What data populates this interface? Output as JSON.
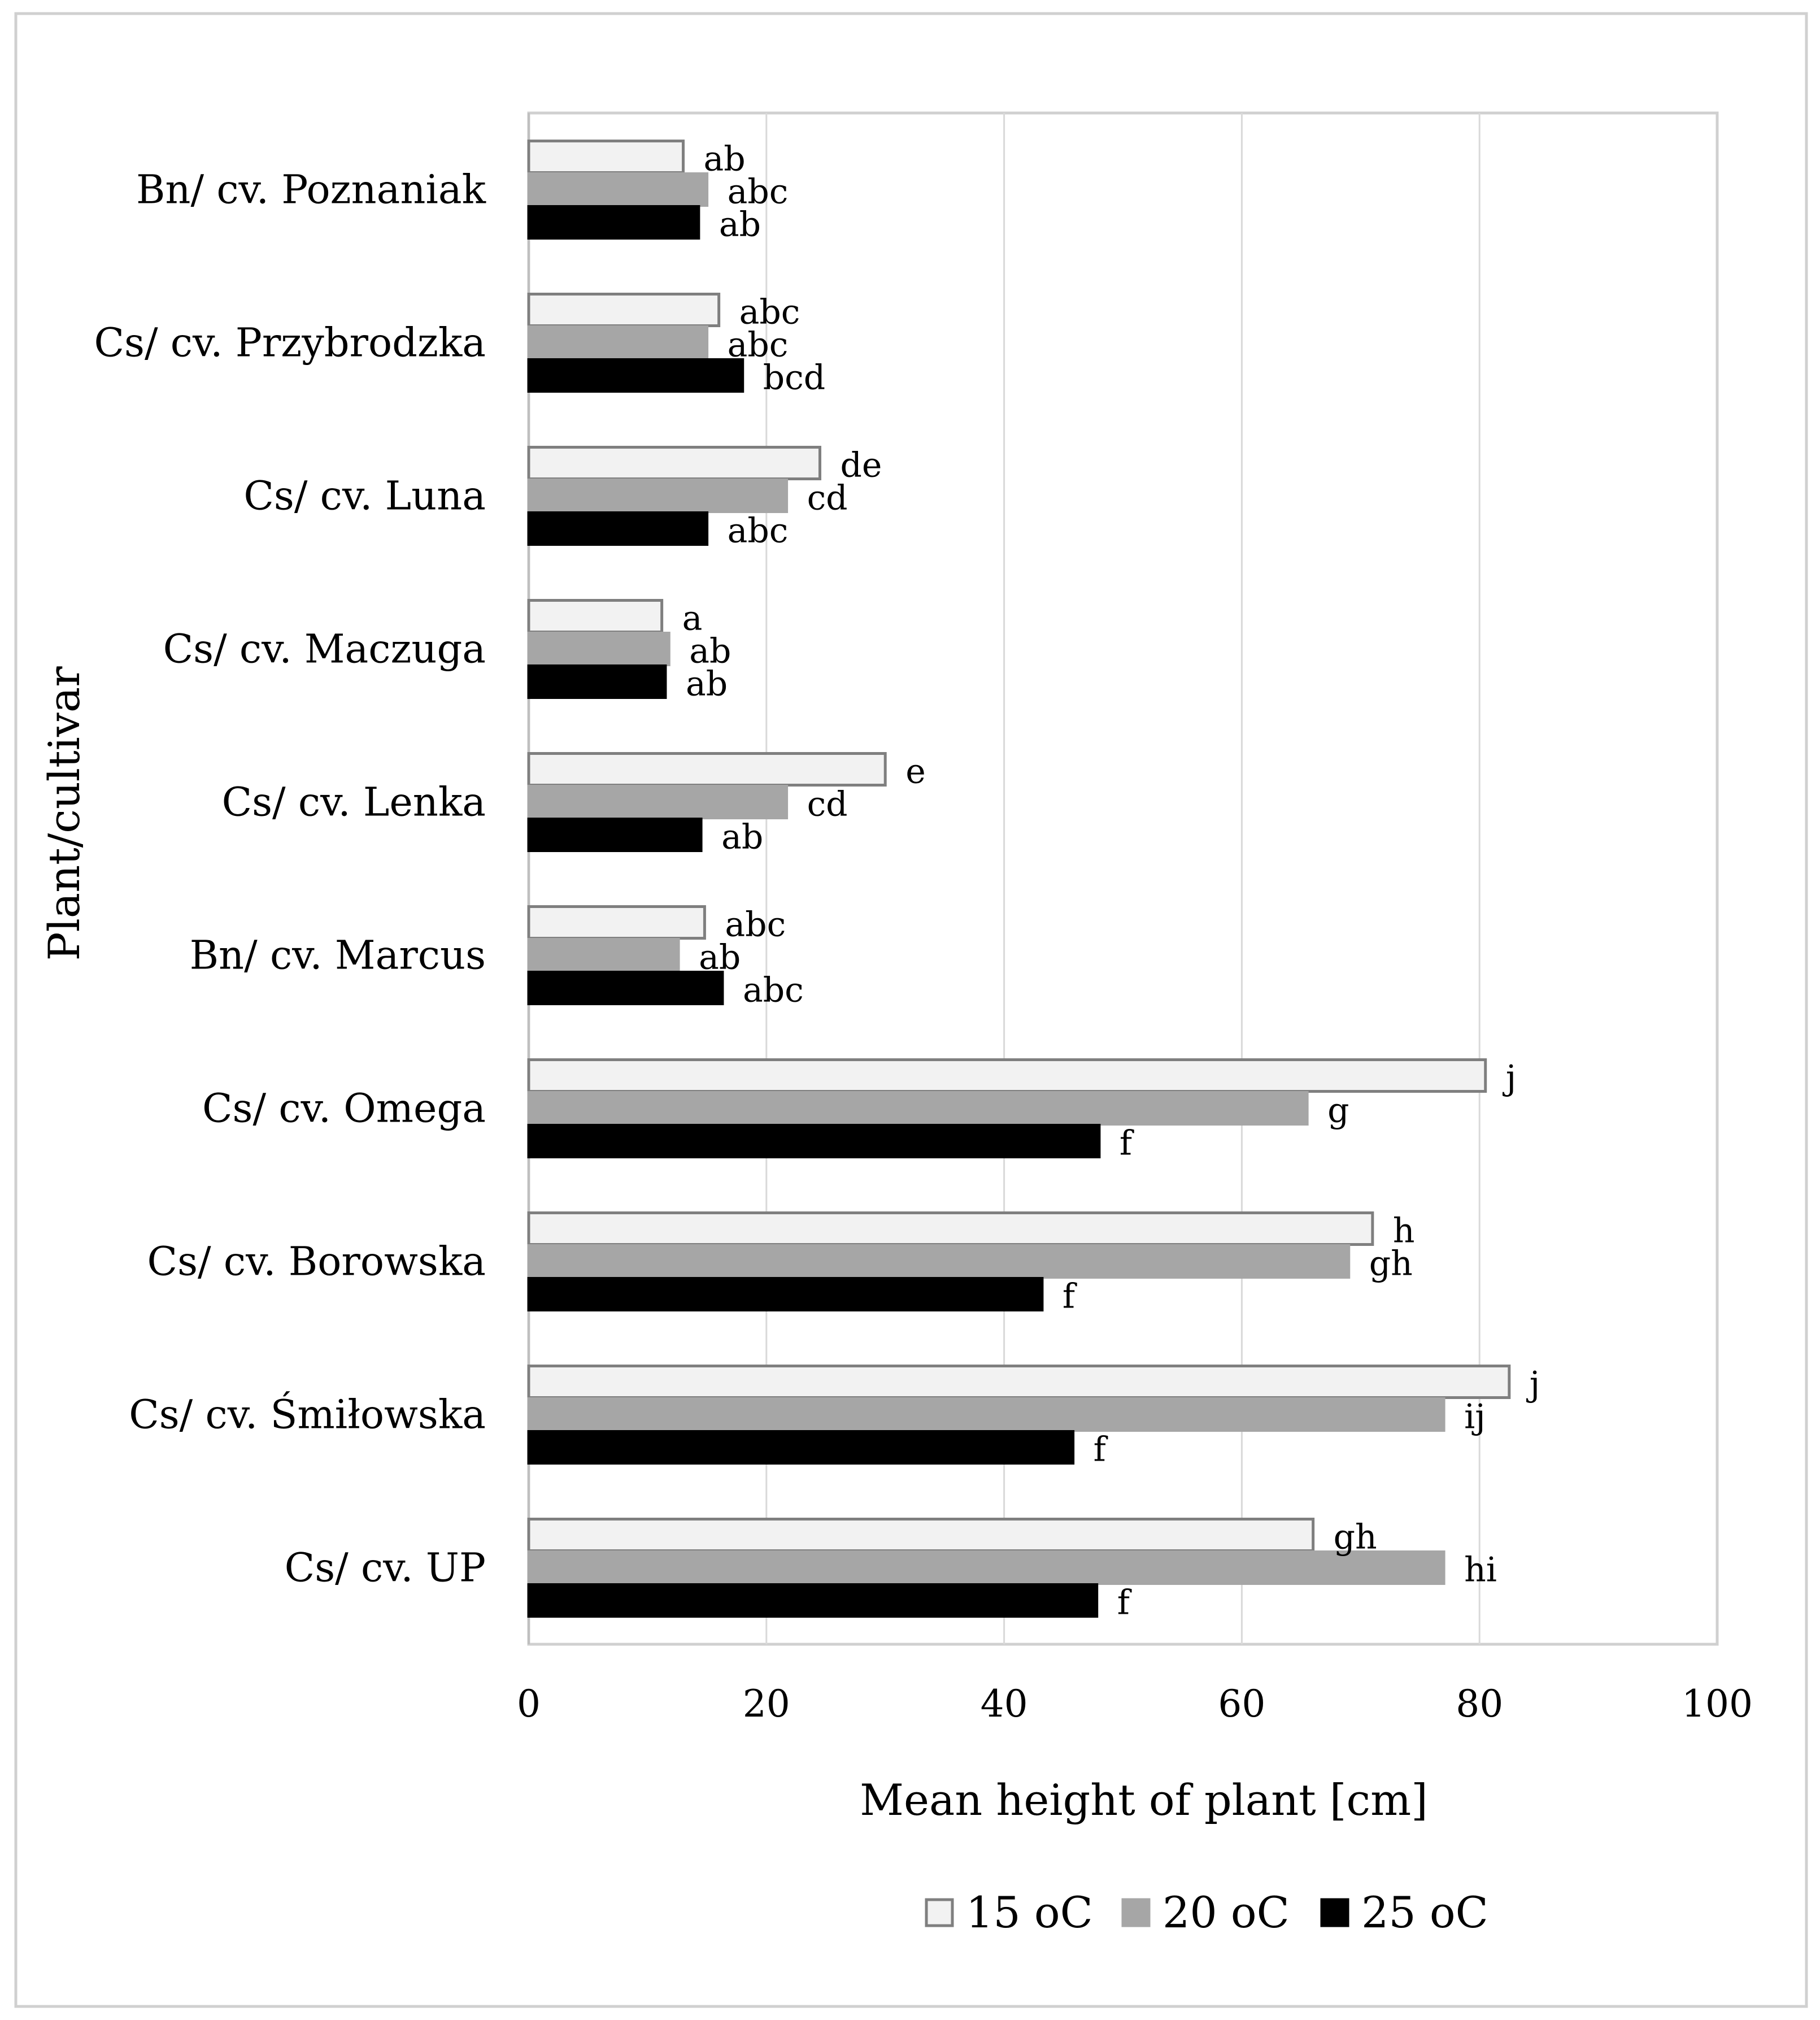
{
  "chart_data": {
    "type": "bar",
    "orientation": "horizontal",
    "title": "",
    "xlabel": "Mean height of plant [cm]",
    "ylabel": "Plant/cultivar",
    "xlim": [
      0,
      100
    ],
    "xticks": [
      0,
      20,
      40,
      60,
      80,
      100
    ],
    "grid": true,
    "legend_position": "bottom",
    "categories": [
      "Bn/ cv. Poznaniak",
      "Cs/ cv. Przybrodzka",
      "Cs/ cv. Luna",
      "Cs/ cv. Maczuga",
      "Cs/ cv. Lenka",
      "Bn/ cv. Marcus",
      "Cs/ cv. Omega",
      "Cs/ cv. Borowska",
      "Cs/ cv. Śmiłowska",
      "Cs/ cv. UP"
    ],
    "series": [
      {
        "name": "15 oC",
        "color": "#f2f2f2",
        "stroke": "#7f7f7f",
        "values": [
          13,
          16,
          24.5,
          11.2,
          30,
          14.8,
          80.5,
          71,
          82.5,
          66
        ],
        "labels": [
          "ab",
          "abc",
          "de",
          "a",
          "e",
          "abc",
          "j",
          "h",
          "j",
          "gh"
        ]
      },
      {
        "name": "20 oC",
        "color": "#a6a6a6",
        "stroke": "#a6a6a6",
        "values": [
          15,
          15,
          21.7,
          11.8,
          21.7,
          12.6,
          65.5,
          69,
          77,
          77
        ],
        "labels": [
          "abc",
          "abc",
          "cd",
          "ab",
          "cd",
          "ab",
          "g",
          "gh",
          "ij",
          "hi"
        ]
      },
      {
        "name": "25 oC",
        "color": "#000000",
        "stroke": "#000000",
        "values": [
          14.3,
          18,
          15,
          11.5,
          14.5,
          16.3,
          48,
          43.2,
          45.8,
          47.8
        ],
        "labels": [
          "ab",
          "bcd",
          "abc",
          "ab",
          "ab",
          "abc",
          "f",
          "f",
          "f",
          "f"
        ]
      }
    ]
  }
}
